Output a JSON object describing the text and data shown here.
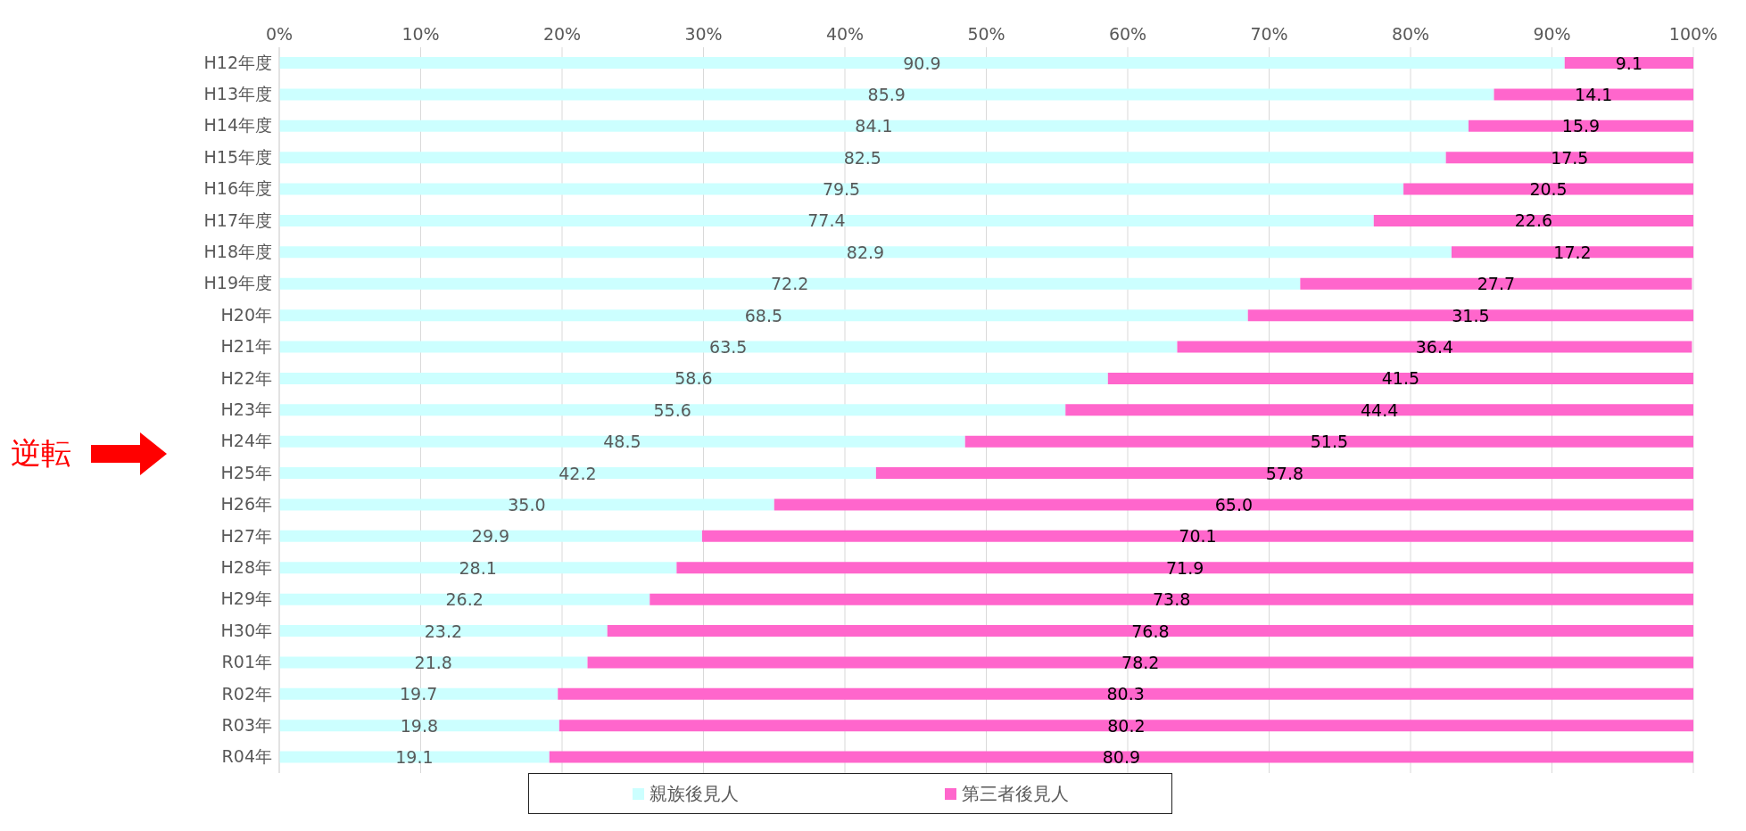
{
  "chart_data": {
    "type": "bar",
    "orientation": "horizontal",
    "stacked": true,
    "categories": [
      "H12年度",
      "H13年度",
      "H14年度",
      "H15年度",
      "H16年度",
      "H17年度",
      "H18年度",
      "H19年度",
      "H20年",
      "H21年",
      "H22年",
      "H23年",
      "H24年",
      "H25年",
      "H26年",
      "H27年",
      "H28年",
      "H29年",
      "H30年",
      "R01年",
      "R02年",
      "R03年",
      "R04年"
    ],
    "series": [
      {
        "name": "親族後見人",
        "color": "#ccffff",
        "values": [
          90.9,
          85.9,
          84.1,
          82.5,
          79.5,
          77.4,
          82.9,
          72.2,
          68.5,
          63.5,
          58.6,
          55.6,
          48.5,
          42.2,
          35.0,
          29.9,
          28.1,
          26.2,
          23.2,
          21.8,
          19.7,
          19.8,
          19.1
        ],
        "value_labels": [
          "90.9",
          "85.9",
          "84.1",
          "82.5",
          "79.5",
          "77.4",
          "82.9",
          "72.2",
          "68.5",
          "63.5",
          "58.6",
          "55.6",
          "48.5",
          "42.2",
          "35.0",
          "29.9",
          "28.1",
          "26.2",
          "23.2",
          "21.8",
          "19.7",
          "19.8",
          "19.1"
        ]
      },
      {
        "name": "第三者後見人",
        "color": "#ff66cc",
        "values": [
          9.1,
          14.1,
          15.9,
          17.5,
          20.5,
          22.6,
          17.2,
          27.7,
          31.5,
          36.4,
          41.5,
          44.4,
          51.5,
          57.8,
          65.0,
          70.1,
          71.9,
          73.8,
          76.8,
          78.2,
          80.3,
          80.2,
          80.9
        ],
        "value_labels": [
          "9.1",
          "14.1",
          "15.9",
          "17.5",
          "20.5",
          "22.6",
          "17.2",
          "27.7",
          "31.5",
          "36.4",
          "41.5",
          "44.4",
          "51.5",
          "57.8",
          "65.0",
          "70.1",
          "71.9",
          "73.8",
          "76.8",
          "78.2",
          "80.3",
          "80.2",
          "80.9"
        ]
      }
    ],
    "xlim": [
      0,
      100
    ],
    "xticks": [
      {
        "value": 0,
        "label": "0%"
      },
      {
        "value": 10,
        "label": "10%"
      },
      {
        "value": 20,
        "label": "20%"
      },
      {
        "value": 30,
        "label": "30%"
      },
      {
        "value": 40,
        "label": "40%"
      },
      {
        "value": 50,
        "label": "50%"
      },
      {
        "value": 60,
        "label": "60%"
      },
      {
        "value": 70,
        "label": "70%"
      },
      {
        "value": 80,
        "label": "80%"
      },
      {
        "value": 90,
        "label": "90%"
      },
      {
        "value": 100,
        "label": "100%"
      }
    ],
    "grid": "x",
    "legend": "bottom",
    "annotations": [
      "逆転"
    ]
  }
}
